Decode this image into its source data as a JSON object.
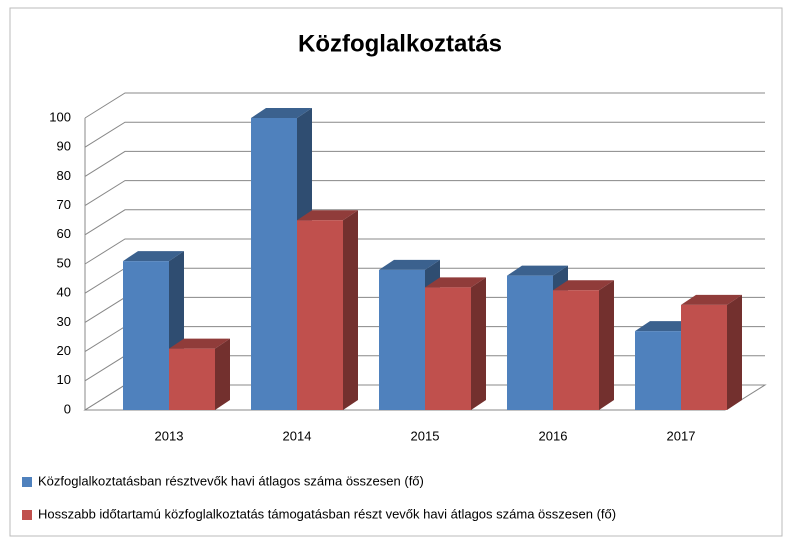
{
  "chart_data": {
    "type": "bar3d",
    "title": "Közfoglalkoztatás",
    "categories": [
      "2013",
      "2014",
      "2015",
      "2016",
      "2017"
    ],
    "series": [
      {
        "name": "Közfoglalkoztatásban résztvevők havi átlagos száma összesen (fő)",
        "color": "#4f81bd",
        "values": [
          51,
          100,
          48,
          46,
          27
        ]
      },
      {
        "name": "Hosszabb időtartamú közfoglalkoztatás támogatásban részt vevők havi átlagos száma összesen (fő)",
        "color": "#c0504d",
        "values": [
          21,
          65,
          42,
          41,
          36
        ]
      }
    ],
    "ylim": [
      0,
      100
    ],
    "yticks": [
      0,
      10,
      20,
      30,
      40,
      50,
      60,
      70,
      80,
      90,
      100
    ],
    "grid": true,
    "legend": "bottom"
  }
}
